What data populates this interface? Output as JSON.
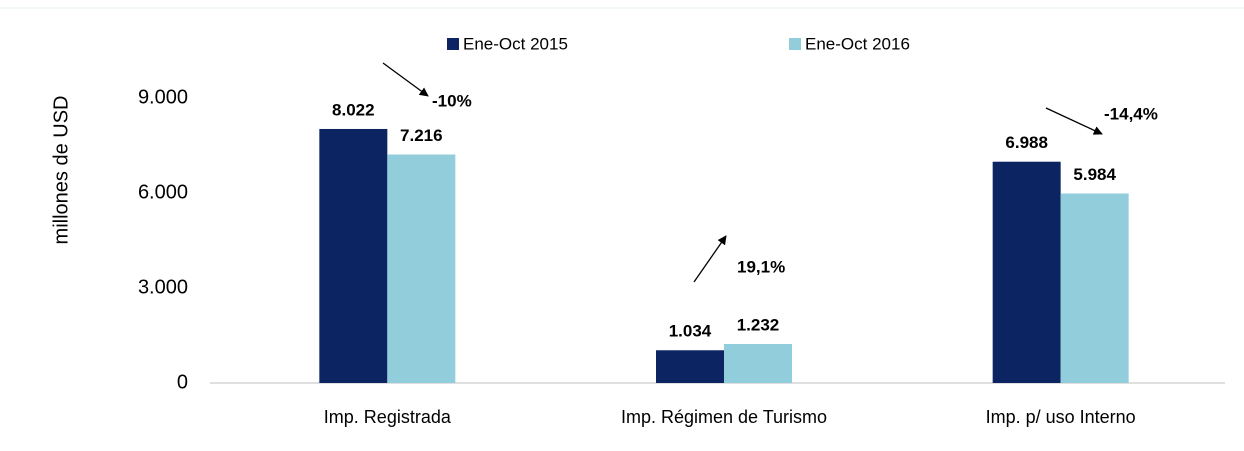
{
  "chart_data": {
    "type": "bar",
    "y_label": "millones de USD",
    "categories": [
      "Imp. Registrada",
      "Imp. Régimen de Turismo",
      "Imp. p/ uso Interno"
    ],
    "series": [
      {
        "name": "Ene-Oct 2015",
        "color": "#0c2461",
        "values": [
          8022,
          1034,
          6988
        ],
        "value_labels": [
          "8.022",
          "1.034",
          "6.988"
        ]
      },
      {
        "name": "Ene-Oct 2016",
        "color": "#92cddc",
        "values": [
          7216,
          1232,
          5984
        ],
        "value_labels": [
          "7.216",
          "1.232",
          "5.984"
        ]
      }
    ],
    "annotations": [
      "-10%",
      "19,1%",
      "-14,4%"
    ],
    "ylim": [
      0,
      12000
    ],
    "yticks": [
      0,
      {
        "value": 3000,
        "label": "3.000"
      },
      {
        "value": 6000,
        "label": "6.000"
      },
      {
        "value": 9000,
        "label": "9.000"
      }
    ],
    "legend": "top"
  }
}
